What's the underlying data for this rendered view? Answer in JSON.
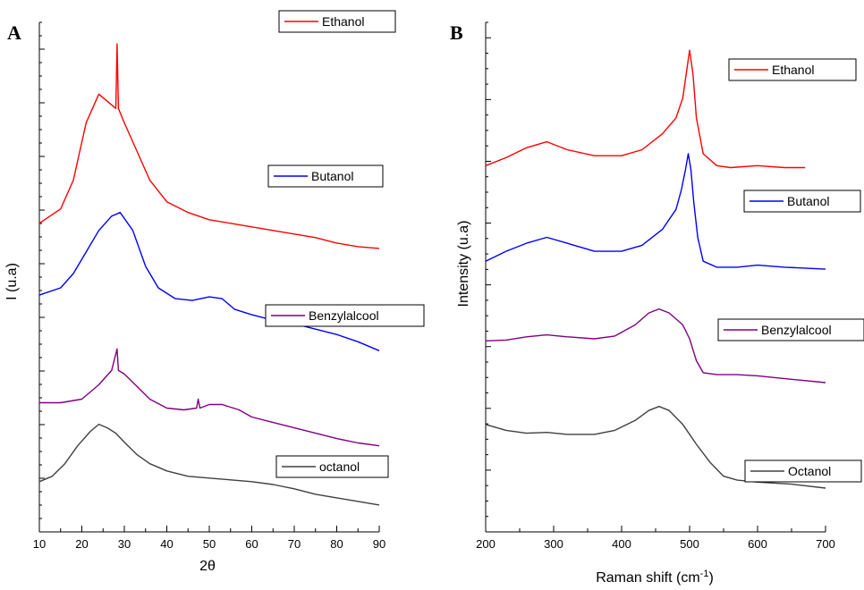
{
  "chart_data": [
    {
      "type": "line",
      "panel_label": "A",
      "xlabel": "2θ",
      "ylabel": "I (u.a)",
      "xlim": [
        10,
        90
      ],
      "xticks": [
        10,
        20,
        30,
        40,
        50,
        60,
        70,
        80,
        90
      ],
      "y_tick_labels_shown": false,
      "series": [
        {
          "name": "Ethanol",
          "color": "#ff0000",
          "x": [
            10,
            15,
            18,
            21,
            24,
            26,
            28,
            28.3,
            28.6,
            30,
            33,
            36,
            40,
            45,
            50,
            55,
            60,
            65,
            70,
            75,
            80,
            85,
            90
          ],
          "y": [
            8.0,
            8.4,
            9.2,
            10.8,
            11.6,
            11.4,
            11.2,
            13.0,
            11.2,
            10.8,
            10.0,
            9.2,
            8.6,
            8.3,
            8.1,
            8.0,
            7.9,
            7.8,
            7.7,
            7.6,
            7.45,
            7.35,
            7.3
          ]
        },
        {
          "name": "Butanol",
          "color": "#0000ff",
          "x": [
            10,
            15,
            18,
            21,
            24,
            27,
            29,
            32,
            35,
            38,
            42,
            46,
            50,
            53,
            56,
            60,
            65,
            70,
            75,
            80,
            85,
            90
          ],
          "y": [
            6.0,
            6.2,
            6.6,
            7.2,
            7.8,
            8.2,
            8.3,
            7.8,
            6.8,
            6.2,
            5.9,
            5.85,
            5.95,
            5.9,
            5.6,
            5.45,
            5.3,
            5.2,
            5.05,
            4.9,
            4.7,
            4.45
          ]
        },
        {
          "name": "Benzylalcool",
          "color": "#800080",
          "x": [
            10,
            15,
            20,
            24,
            27,
            28.3,
            28.6,
            30,
            33,
            36,
            40,
            44,
            47,
            47.4,
            47.8,
            50,
            53,
            57,
            60,
            65,
            70,
            75,
            80,
            85,
            90
          ],
          "y": [
            3.0,
            3.0,
            3.1,
            3.5,
            3.9,
            4.5,
            3.9,
            3.8,
            3.45,
            3.1,
            2.85,
            2.8,
            2.85,
            3.1,
            2.85,
            2.95,
            2.95,
            2.8,
            2.6,
            2.45,
            2.3,
            2.15,
            2.0,
            1.88,
            1.8
          ]
        },
        {
          "name": "octanol",
          "color": "#404040",
          "x": [
            10,
            13,
            16,
            19,
            22,
            24,
            26,
            28,
            30,
            33,
            36,
            40,
            45,
            50,
            55,
            60,
            65,
            70,
            75,
            80,
            85,
            90
          ],
          "y": [
            0.8,
            0.95,
            1.3,
            1.8,
            2.2,
            2.4,
            2.3,
            2.15,
            1.9,
            1.55,
            1.3,
            1.1,
            0.95,
            0.9,
            0.85,
            0.8,
            0.72,
            0.6,
            0.45,
            0.35,
            0.25,
            0.15
          ]
        }
      ]
    },
    {
      "type": "line",
      "panel_label": "B",
      "xlabel": "Raman shift (cm",
      "xlabel_superscript": "-1",
      "xlabel_suffix": ")",
      "ylabel": "Intensity (u.a)",
      "xlim": [
        200,
        700
      ],
      "xticks": [
        200,
        300,
        400,
        500,
        600,
        700
      ],
      "y_tick_labels_shown": false,
      "series": [
        {
          "name": "Ethanol",
          "color": "#ff0000",
          "x": [
            200,
            230,
            260,
            290,
            320,
            360,
            400,
            430,
            460,
            480,
            490,
            495,
            500,
            505,
            510,
            520,
            540,
            560,
            600,
            640,
            670
          ],
          "y": [
            8.0,
            8.2,
            8.45,
            8.6,
            8.4,
            8.25,
            8.25,
            8.4,
            8.8,
            9.2,
            9.7,
            10.3,
            10.9,
            10.3,
            9.2,
            8.3,
            8.0,
            7.95,
            8.0,
            7.95,
            7.95
          ]
        },
        {
          "name": "Butanol",
          "color": "#0000ff",
          "x": [
            200,
            230,
            260,
            290,
            320,
            360,
            400,
            430,
            460,
            480,
            488,
            494,
            498,
            502,
            506,
            512,
            520,
            540,
            570,
            600,
            640,
            700
          ],
          "y": [
            5.6,
            5.85,
            6.05,
            6.2,
            6.05,
            5.85,
            5.85,
            6.0,
            6.4,
            6.9,
            7.4,
            7.9,
            8.3,
            7.9,
            7.1,
            6.2,
            5.6,
            5.45,
            5.45,
            5.5,
            5.45,
            5.4
          ]
        },
        {
          "name": "Benzylalcool",
          "color": "#800080",
          "x": [
            200,
            230,
            260,
            290,
            320,
            360,
            390,
            420,
            440,
            455,
            470,
            490,
            500,
            510,
            520,
            540,
            570,
            600,
            640,
            700
          ],
          "y": [
            3.6,
            3.62,
            3.7,
            3.75,
            3.7,
            3.65,
            3.72,
            4.0,
            4.3,
            4.4,
            4.3,
            4.0,
            3.65,
            3.1,
            2.8,
            2.75,
            2.75,
            2.72,
            2.65,
            2.55
          ]
        },
        {
          "name": "Octanol",
          "color": "#404040",
          "x": [
            200,
            230,
            260,
            290,
            320,
            360,
            390,
            420,
            440,
            455,
            470,
            490,
            510,
            530,
            550,
            570,
            600,
            650,
            700
          ],
          "y": [
            1.5,
            1.35,
            1.28,
            1.3,
            1.25,
            1.25,
            1.35,
            1.6,
            1.85,
            1.95,
            1.85,
            1.5,
            1.0,
            0.55,
            0.2,
            0.1,
            0.05,
            0.0,
            -0.1
          ]
        }
      ]
    }
  ]
}
